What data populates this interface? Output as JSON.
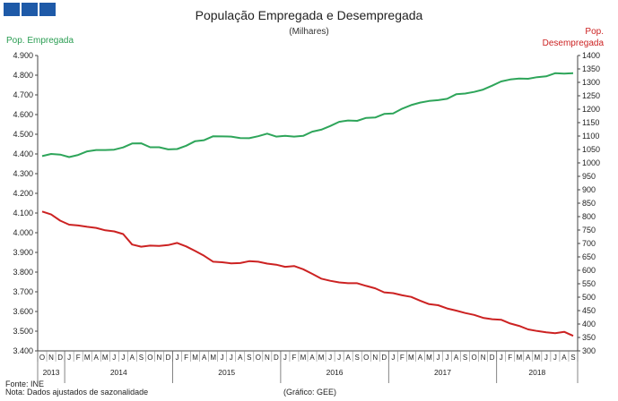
{
  "header": {
    "title": "População Empregada e Desempregada",
    "subtitle": "(Milhares)",
    "left_axis_label": "Pop. Empregada",
    "right_axis_label_line1": "Pop.",
    "right_axis_label_line2": "Desempregada"
  },
  "footer": {
    "source": "Fonte: INE",
    "note": "Nota: Dados ajustados de sazonalidade",
    "credit": "(Gráfico: GEE)"
  },
  "colors": {
    "employed": "#2ea55a",
    "unemployed": "#cc2222",
    "brand": "#1e5aa8"
  },
  "chart_data": {
    "type": "line",
    "x_month_labels": [
      "O",
      "N",
      "D",
      "J",
      "F",
      "M",
      "A",
      "M",
      "J",
      "J",
      "A",
      "S",
      "O",
      "N",
      "D",
      "J",
      "F",
      "M",
      "A",
      "M",
      "J",
      "J",
      "A",
      "S",
      "O",
      "N",
      "D",
      "J",
      "F",
      "M",
      "A",
      "M",
      "J",
      "J",
      "A",
      "S",
      "O",
      "N",
      "D",
      "J",
      "F",
      "M",
      "A",
      "M",
      "J",
      "J",
      "A",
      "S",
      "O",
      "N",
      "D",
      "J",
      "F",
      "M",
      "A",
      "M",
      "J",
      "J",
      "A",
      "S"
    ],
    "x_year_labels": [
      "2013",
      "2014",
      "2015",
      "2016",
      "2017",
      "2018"
    ],
    "y_left_ticks": [
      "3.400",
      "3.500",
      "3.600",
      "3.700",
      "3.800",
      "3.900",
      "4.000",
      "4.100",
      "4.200",
      "4.300",
      "4.400",
      "4.500",
      "4.600",
      "4.700",
      "4.800",
      "4.900"
    ],
    "y_right_ticks": [
      "300",
      "350",
      "400",
      "450",
      "500",
      "550",
      "600",
      "650",
      "700",
      "750",
      "800",
      "850",
      "900",
      "950",
      "1000",
      "1050",
      "1100",
      "1150",
      "1200",
      "1250",
      "1300",
      "1350",
      "1400"
    ],
    "ylim_left": [
      3400,
      4900
    ],
    "ylim_right": [
      300,
      1400
    ],
    "series": [
      {
        "name": "Pop. Empregada",
        "axis": "left",
        "values": [
          4389,
          4400,
          4397,
          4384,
          4395,
          4413,
          4420,
          4420,
          4422,
          4433,
          4453,
          4454,
          4434,
          4434,
          4423,
          4425,
          4442,
          4465,
          4470,
          4490,
          4489,
          4488,
          4481,
          4480,
          4490,
          4503,
          4488,
          4492,
          4488,
          4492,
          4513,
          4523,
          4542,
          4563,
          4570,
          4568,
          4583,
          4585,
          4603,
          4606,
          4630,
          4648,
          4661,
          4669,
          4673,
          4680,
          4703,
          4707,
          4715,
          4727,
          4747,
          4768,
          4778,
          4783,
          4782,
          4790,
          4794,
          4810,
          4808,
          4810
        ]
      },
      {
        "name": "Pop. Desempregada",
        "axis": "right",
        "values": [
          819,
          808,
          785,
          770,
          767,
          762,
          758,
          749,
          745,
          735,
          696,
          688,
          692,
          691,
          694,
          702,
          689,
          672,
          654,
          632,
          630,
          626,
          627,
          634,
          632,
          625,
          621,
          613,
          616,
          604,
          587,
          569,
          561,
          555,
          552,
          552,
          542,
          533,
          518,
          515,
          507,
          501,
          487,
          474,
          470,
          458,
          450,
          441,
          434,
          423,
          418,
          416,
          402,
          393,
          380,
          374,
          369,
          366,
          371,
          356
        ]
      }
    ]
  }
}
